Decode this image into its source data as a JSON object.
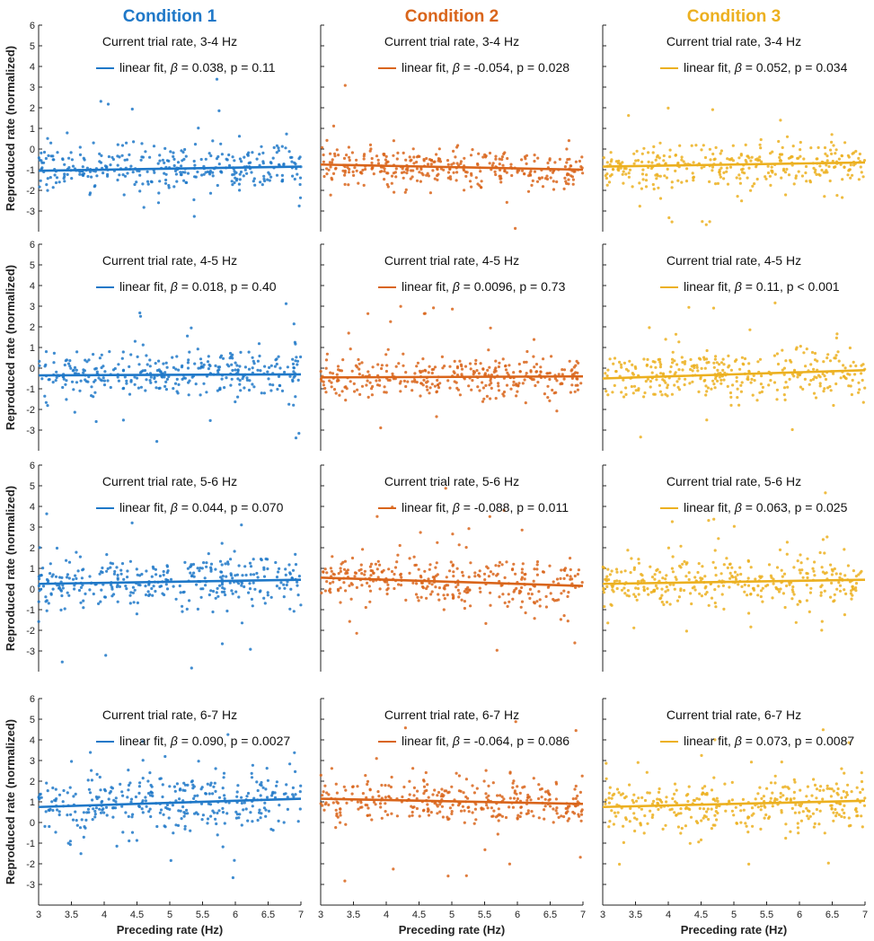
{
  "conditions": [
    {
      "title": "Condition 1",
      "color": "#1f78c8"
    },
    {
      "title": "Condition 2",
      "color": "#d9651b"
    },
    {
      "title": "Condition 3",
      "color": "#ecb020"
    }
  ],
  "axes": {
    "xlabel": "Preceding rate (Hz)",
    "ylabel": "Reproduced rate (normalized)",
    "xlim": [
      3,
      7
    ],
    "ylim": [
      -4,
      6
    ],
    "xticks": [
      "3",
      "3.5",
      "4",
      "4.5",
      "5",
      "5.5",
      "6",
      "6.5",
      "7"
    ],
    "yticks": [
      "6",
      "5",
      "4",
      "3",
      "2",
      "1",
      "0",
      "-1",
      "-2",
      "-3"
    ]
  },
  "chart_data": [
    {
      "type": "scatter",
      "row": 0,
      "col": 0,
      "title": "Current trial rate, 3-4 Hz",
      "series": [
        {
          "name": "linear fit",
          "beta": "0.038",
          "p": "p = 0.11",
          "fit": [
            -1.05,
            -0.85
          ],
          "center": -0.95,
          "spread": 0.55
        }
      ]
    },
    {
      "type": "scatter",
      "row": 0,
      "col": 1,
      "title": "Current trial rate, 3-4 Hz",
      "series": [
        {
          "name": "linear fit",
          "beta": "-0.054",
          "p": "p = 0.028",
          "fit": [
            -0.75,
            -1.0
          ],
          "center": -0.88,
          "spread": 0.5
        }
      ]
    },
    {
      "type": "scatter",
      "row": 0,
      "col": 2,
      "title": "Current trial rate, 3-4 Hz",
      "series": [
        {
          "name": "linear fit",
          "beta": "0.052",
          "p": "p = 0.034",
          "fit": [
            -0.85,
            -0.65
          ],
          "center": -0.75,
          "spread": 0.55
        }
      ]
    },
    {
      "type": "scatter",
      "row": 1,
      "col": 0,
      "title": "Current trial rate, 4-5 Hz",
      "series": [
        {
          "name": "linear fit",
          "beta": "0.018",
          "p": "p = 0.40",
          "fit": [
            -0.35,
            -0.3
          ],
          "center": -0.32,
          "spread": 0.55
        }
      ]
    },
    {
      "type": "scatter",
      "row": 1,
      "col": 1,
      "title": "Current trial rate, 4-5 Hz",
      "series": [
        {
          "name": "linear fit",
          "beta": "0.0096",
          "p": "p = 0.73",
          "fit": [
            -0.45,
            -0.4
          ],
          "center": -0.42,
          "spread": 0.5
        }
      ]
    },
    {
      "type": "scatter",
      "row": 1,
      "col": 2,
      "title": "Current trial rate, 4-5 Hz",
      "series": [
        {
          "name": "linear fit",
          "beta": "0.11",
          "p": "p < 0.001",
          "fit": [
            -0.5,
            -0.1
          ],
          "center": -0.3,
          "spread": 0.6
        }
      ]
    },
    {
      "type": "scatter",
      "row": 2,
      "col": 0,
      "title": "Current trial rate, 5-6 Hz",
      "series": [
        {
          "name": "linear fit",
          "beta": "0.044",
          "p": "p = 0.070",
          "fit": [
            0.25,
            0.45
          ],
          "center": 0.35,
          "spread": 0.65
        }
      ]
    },
    {
      "type": "scatter",
      "row": 2,
      "col": 1,
      "title": "Current trial rate, 5-6 Hz",
      "series": [
        {
          "name": "linear fit",
          "beta": "-0.088",
          "p": "p = 0.011",
          "fit": [
            0.55,
            0.15
          ],
          "center": 0.35,
          "spread": 0.6
        }
      ]
    },
    {
      "type": "scatter",
      "row": 2,
      "col": 2,
      "title": "Current trial rate, 5-6 Hz",
      "series": [
        {
          "name": "linear fit",
          "beta": "0.063",
          "p": "p = 0.025",
          "fit": [
            0.25,
            0.45
          ],
          "center": 0.35,
          "spread": 0.65
        }
      ]
    },
    {
      "type": "scatter",
      "row": 3,
      "col": 0,
      "title": "Current trial rate, 6-7 Hz",
      "series": [
        {
          "name": "linear fit",
          "beta": "0.090",
          "p": "p = 0.0027",
          "fit": [
            0.75,
            1.15
          ],
          "center": 0.95,
          "spread": 0.75
        }
      ]
    },
    {
      "type": "scatter",
      "row": 3,
      "col": 1,
      "title": "Current trial rate, 6-7 Hz",
      "series": [
        {
          "name": "linear fit",
          "beta": "-0.064",
          "p": "p = 0.086",
          "fit": [
            1.15,
            0.9
          ],
          "center": 1.0,
          "spread": 0.6
        }
      ]
    },
    {
      "type": "scatter",
      "row": 3,
      "col": 2,
      "title": "Current trial rate, 6-7 Hz",
      "series": [
        {
          "name": "linear fit",
          "beta": "0.073",
          "p": "p = 0.0087",
          "fit": [
            0.75,
            1.05
          ],
          "center": 0.9,
          "spread": 0.65
        }
      ]
    }
  ]
}
